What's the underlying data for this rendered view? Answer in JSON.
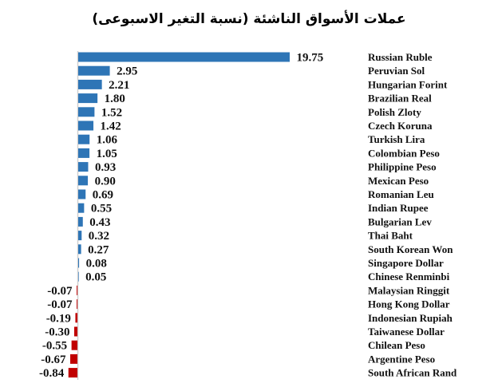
{
  "chart_data": {
    "type": "bar",
    "orientation": "horizontal",
    "title": "عملات الأسواق الناشئة (نسبة التغير الاسبوعى)",
    "categories": [
      "Russian Ruble",
      "Peruvian Sol",
      "Hungarian Forint",
      "Brazilian Real",
      "Polish Zloty",
      "Czech Koruna",
      "Turkish Lira",
      "Colombian Peso",
      "Philippine Peso",
      "Mexican Peso",
      "Romanian Leu",
      "Indian Rupee",
      "Bulgarian Lev",
      "Thai Baht",
      "South Korean Won",
      "Singapore Dollar",
      "Chinese Renminbi",
      "Malaysian Ringgit",
      "Hong Kong Dollar",
      "Indonesian Rupiah",
      "Taiwanese Dollar",
      "Chilean Peso",
      "Argentine Peso",
      "South African Rand"
    ],
    "values": [
      19.75,
      2.95,
      2.21,
      1.8,
      1.52,
      1.42,
      1.06,
      1.05,
      0.93,
      0.9,
      0.69,
      0.55,
      0.43,
      0.32,
      0.27,
      0.08,
      0.05,
      -0.07,
      -0.07,
      -0.19,
      -0.3,
      -0.55,
      -0.67,
      -0.84
    ],
    "labels": [
      "19.75",
      "2.95",
      "2.21",
      "1.80",
      "1.52",
      "1.42",
      "1.06",
      "1.05",
      "0.93",
      "0.90",
      "0.69",
      "0.55",
      "0.43",
      "0.32",
      "0.27",
      "0.08",
      "0.05",
      "-0.07",
      "-0.07",
      "-0.19",
      "-0.30",
      "-0.55",
      "-0.67",
      "-0.84"
    ],
    "colors": {
      "positive": "#2e75b6",
      "negative": "#c00000",
      "axis": "#d0d0d0"
    },
    "grid": false,
    "legend": "none",
    "data_labels": true
  }
}
